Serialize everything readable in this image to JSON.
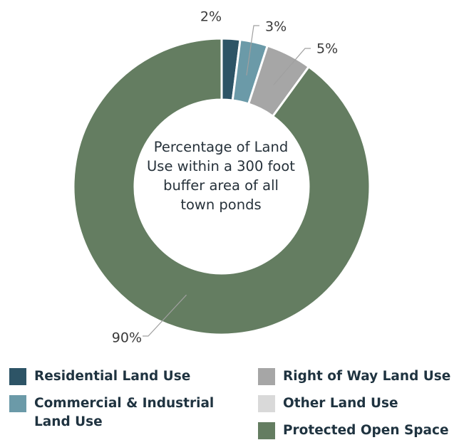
{
  "chart_data": {
    "type": "pie",
    "subtype": "donut",
    "center_title": "Percentage of Land Use within a 300 foot buffer area of all town ponds",
    "slices": [
      {
        "name": "Residential Land Use",
        "value": 2,
        "label": "2%",
        "color": "#2d5466"
      },
      {
        "name": "Commercial & Industrial Land Use",
        "value": 3,
        "label": "3%",
        "color": "#6b9aa8"
      },
      {
        "name": "Right of Way Land Use",
        "value": 5,
        "label": "5%",
        "color": "#a6a6a6"
      },
      {
        "name": "Other Land Use",
        "value": 0,
        "label": "",
        "color": "#d9d9d9"
      },
      {
        "name": "Protected Open Space",
        "value": 90,
        "label": "90%",
        "color": "#647d61"
      }
    ],
    "legend_position": "bottom"
  }
}
